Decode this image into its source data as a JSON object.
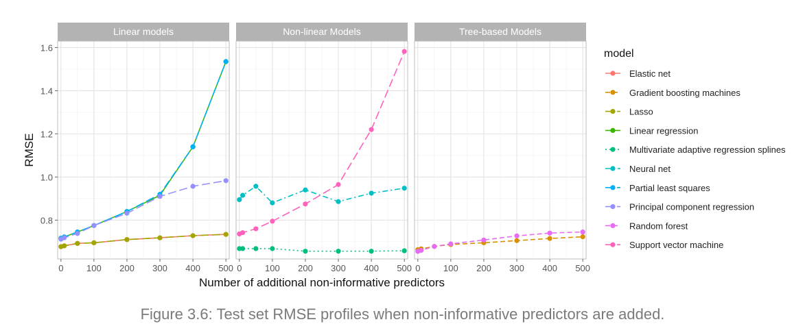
{
  "caption": "Figure 3.6: Test set RMSE profiles when non-informative predictors are added.",
  "chart_data": {
    "type": "line",
    "xlabel": "Number of additional non-informative predictors",
    "ylabel": "RMSE",
    "xlim": [
      -10,
      510
    ],
    "ylim": [
      0.62,
      1.63
    ],
    "x_ticks": [
      0,
      100,
      200,
      300,
      400,
      500
    ],
    "y_ticks": [
      0.8,
      1.0,
      1.2,
      1.4,
      1.6
    ],
    "y_tick_labels": [
      "0.8",
      "1.0",
      "1.2",
      "1.4",
      "1.6"
    ],
    "grid": true,
    "legend_title": "model",
    "legend_position": "right",
    "panels": [
      {
        "title": "Linear models",
        "series": [
          {
            "name": "Elastic net",
            "color": "#F8766D",
            "dash": "solid",
            "x": [
              0,
              10,
              50,
              100,
              200,
              300,
              400,
              500
            ],
            "y": [
              0.677,
              0.681,
              0.692,
              0.695,
              0.71,
              0.718,
              0.728,
              0.734
            ]
          },
          {
            "name": "Lasso",
            "color": "#A3A500",
            "dash": "longdash",
            "x": [
              0,
              10,
              50,
              100,
              200,
              300,
              400,
              500
            ],
            "y": [
              0.677,
              0.681,
              0.692,
              0.695,
              0.71,
              0.718,
              0.728,
              0.734
            ]
          },
          {
            "name": "Linear regression",
            "color": "#39B600",
            "dash": "solid",
            "x": [
              0,
              10,
              50,
              100,
              200,
              300,
              400,
              500
            ],
            "y": [
              0.716,
              0.722,
              0.745,
              0.775,
              0.84,
              0.915,
              1.14,
              1.535
            ]
          },
          {
            "name": "Partial least squares",
            "color": "#00B0F6",
            "dash": "longdash",
            "x": [
              0,
              10,
              50,
              100,
              200,
              300,
              400,
              500
            ],
            "y": [
              0.716,
              0.722,
              0.745,
              0.775,
              0.84,
              0.92,
              1.14,
              1.535
            ]
          },
          {
            "name": "Principal component regression",
            "color": "#9590FF",
            "dash": "longdash",
            "x": [
              0,
              10,
              50,
              100,
              200,
              300,
              400,
              500
            ],
            "y": [
              0.712,
              0.718,
              0.738,
              0.775,
              0.832,
              0.91,
              0.957,
              0.983
            ]
          }
        ]
      },
      {
        "title": "Non-linear Models",
        "series": [
          {
            "name": "Multivariate adaptive regression splines",
            "color": "#00BF7D",
            "dash": "dotted",
            "x": [
              0,
              10,
              50,
              100,
              200,
              300,
              400,
              500
            ],
            "y": [
              0.668,
              0.668,
              0.668,
              0.668,
              0.656,
              0.656,
              0.656,
              0.658
            ]
          },
          {
            "name": "Neural net",
            "color": "#00BFC4",
            "dash": "dashdot",
            "x": [
              0,
              10,
              50,
              100,
              200,
              300,
              400,
              500
            ],
            "y": [
              0.895,
              0.915,
              0.957,
              0.88,
              0.94,
              0.886,
              0.925,
              0.948
            ]
          },
          {
            "name": "Support vector machine",
            "color": "#FF62BC",
            "dash": "longdash",
            "x": [
              0,
              10,
              50,
              100,
              200,
              300,
              400,
              500
            ],
            "y": [
              0.736,
              0.742,
              0.76,
              0.795,
              0.875,
              0.965,
              1.22,
              1.582
            ]
          }
        ]
      },
      {
        "title": "Tree-based Models",
        "series": [
          {
            "name": "Gradient boosting machines",
            "color": "#D89000",
            "dash": "dashed",
            "x": [
              0,
              10,
              50,
              100,
              200,
              300,
              400,
              500
            ],
            "y": [
              0.663,
              0.667,
              0.678,
              0.687,
              0.695,
              0.705,
              0.715,
              0.723
            ]
          },
          {
            "name": "Random forest",
            "color": "#E76BF3",
            "dash": "dashed",
            "x": [
              0,
              10,
              50,
              100,
              200,
              300,
              400,
              500
            ],
            "y": [
              0.655,
              0.66,
              0.678,
              0.69,
              0.708,
              0.727,
              0.74,
              0.745
            ]
          }
        ]
      }
    ],
    "legend": [
      {
        "name": "Elastic net",
        "color": "#F8766D",
        "dash": "solid"
      },
      {
        "name": "Gradient boosting machines",
        "color": "#D89000",
        "dash": "dashed"
      },
      {
        "name": "Lasso",
        "color": "#A3A500",
        "dash": "longdash"
      },
      {
        "name": "Linear regression",
        "color": "#39B600",
        "dash": "solid"
      },
      {
        "name": "Multivariate adaptive regression splines",
        "color": "#00BF7D",
        "dash": "dotted"
      },
      {
        "name": "Neural net",
        "color": "#00BFC4",
        "dash": "dashdot"
      },
      {
        "name": "Partial least squares",
        "color": "#00B0F6",
        "dash": "longdash"
      },
      {
        "name": "Principal component regression",
        "color": "#9590FF",
        "dash": "longdash"
      },
      {
        "name": "Random forest",
        "color": "#E76BF3",
        "dash": "dashed"
      },
      {
        "name": "Support vector machine",
        "color": "#FF62BC",
        "dash": "longdash"
      }
    ]
  }
}
